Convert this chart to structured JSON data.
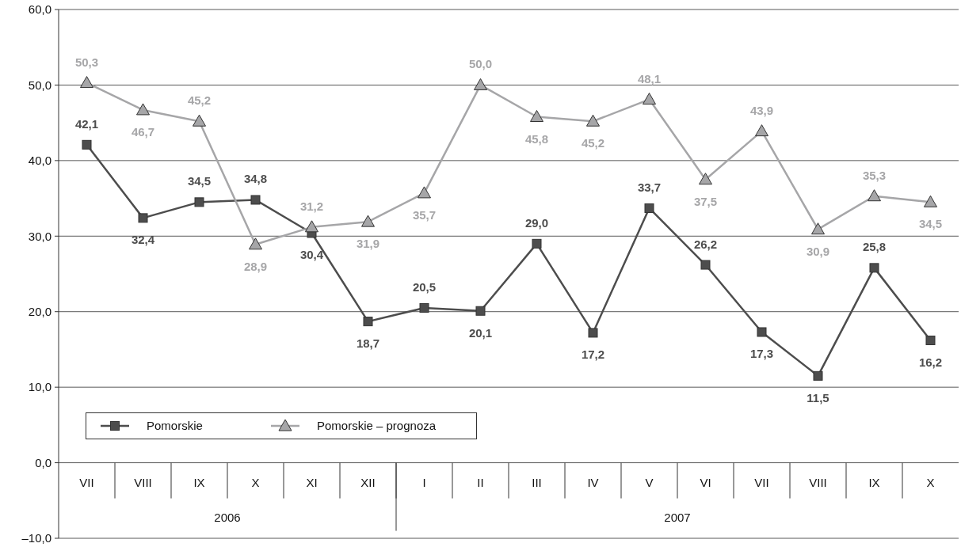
{
  "chart_data": {
    "type": "line",
    "categories": [
      "VII",
      "VIII",
      "IX",
      "X",
      "XI",
      "XII",
      "I",
      "II",
      "III",
      "IV",
      "V",
      "VI",
      "VII",
      "VIII",
      "IX",
      "X"
    ],
    "series": [
      {
        "name": "Pomorskie",
        "color": "#4d4d4d",
        "marker": "square",
        "values": [
          42.1,
          32.4,
          34.5,
          34.8,
          30.4,
          18.7,
          20.5,
          20.1,
          29.0,
          17.2,
          33.7,
          26.2,
          17.3,
          11.5,
          25.8,
          16.2
        ],
        "value_labels": [
          "42,1",
          "32,4",
          "34,5",
          "34,8",
          "30,4",
          "18,7",
          "20,5",
          "20,1",
          "29,0",
          "17,2",
          "33,7",
          "26,2",
          "17,3",
          "11,5",
          "25,8",
          "16,2"
        ]
      },
      {
        "name": "Pomorskie – prognoza",
        "color": "#a6a6a8",
        "marker": "triangle",
        "values": [
          50.3,
          46.7,
          45.2,
          28.9,
          31.2,
          31.9,
          35.7,
          50.0,
          45.8,
          45.2,
          48.1,
          37.5,
          43.9,
          30.9,
          35.3,
          34.5
        ],
        "value_labels": [
          "50,3",
          "46,7",
          "45,2",
          "28,9",
          "31,2",
          "31,9",
          "35,7",
          "50,0",
          "45,8",
          "45,2",
          "48,1",
          "37,5",
          "43,9",
          "30,9",
          "35,3",
          "34,5"
        ]
      }
    ],
    "ylim": [
      -10,
      60
    ],
    "yticks": [
      {
        "value": -10,
        "label": "–10,0"
      },
      {
        "value": 0,
        "label": "0,0"
      },
      {
        "value": 10,
        "label": "10,0"
      },
      {
        "value": 20,
        "label": "20,0"
      },
      {
        "value": 30,
        "label": "30,0"
      },
      {
        "value": 40,
        "label": "40,0"
      },
      {
        "value": 50,
        "label": "50,0"
      },
      {
        "value": 60,
        "label": "60,0"
      }
    ],
    "grid": "y",
    "legend": "bottom left",
    "annotations": [
      "2006",
      "2007"
    ]
  }
}
